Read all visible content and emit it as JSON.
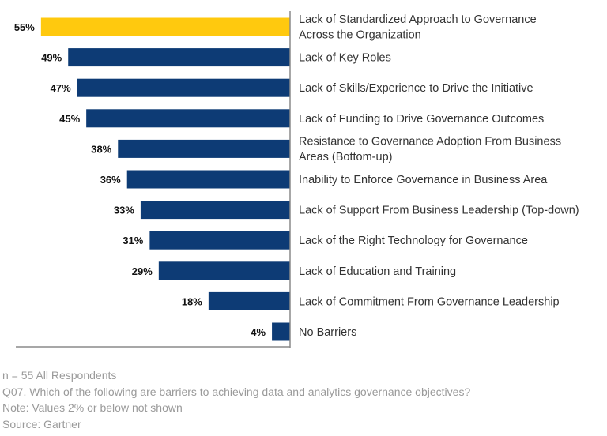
{
  "chart_data": {
    "type": "bar",
    "orientation": "horizontal",
    "categories": [
      "Lack of Standardized Approach to Governance\nAcross the Organization",
      "Lack of Key Roles",
      "Lack of Skills/Experience to Drive the Initiative",
      "Lack of Funding to Drive Governance Outcomes",
      "Resistance to Governance Adoption From Business\nAreas (Bottom-up)",
      "Inability to Enforce Governance in Business Area",
      "Lack of Support From Business Leadership (Top-down)",
      "Lack of the Right Technology for Governance",
      "Lack of Education and Training",
      "Lack of Commitment From Governance Leadership",
      "No Barriers"
    ],
    "values": [
      55,
      49,
      47,
      45,
      38,
      36,
      33,
      31,
      29,
      18,
      4
    ],
    "value_labels": [
      "55%",
      "49%",
      "47%",
      "45%",
      "38%",
      "36%",
      "33%",
      "31%",
      "29%",
      "18%",
      "4%"
    ],
    "highlight_index": 0,
    "colors": {
      "highlight": "#FFC90E",
      "default": "#0D3B75",
      "axis": "#8a8a8a",
      "label": "#333333",
      "value_label": "#111111"
    },
    "xlim": [
      0,
      60
    ],
    "grid": false,
    "legend": "none"
  },
  "notes": [
    "n = 55 All Respondents",
    "Q07. Which of the following are barriers to achieving data and analytics governance objectives?",
    "Note: Values 2% or below not shown",
    "Source: Gartner"
  ]
}
